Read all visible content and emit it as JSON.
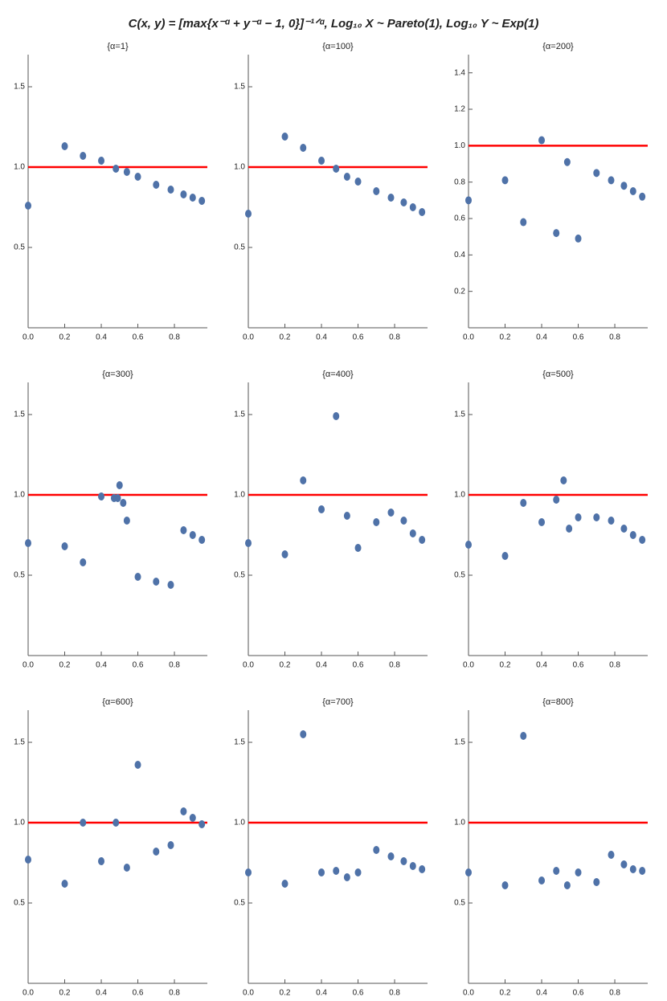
{
  "title": "C(x, y) = [max{x⁻ᵅ + y⁻ᵅ − 1, 0}]⁻¹ᐟᵅ, Log₁₀ X ~ Pareto(1), Log₁₀ Y ~ Exp(1)",
  "chart_data": [
    {
      "type": "scatter",
      "title": "{α=1}",
      "color": "#4f72a8",
      "x": [
        0,
        0.2,
        0.3,
        0.4,
        0.48,
        0.54,
        0.6,
        0.7,
        0.78,
        0.85,
        0.9,
        0.95
      ],
      "values": [
        0.76,
        1.13,
        1.07,
        1.04,
        0.99,
        0.97,
        0.94,
        0.89,
        0.86,
        0.83,
        0.81,
        0.79
      ],
      "xlim": [
        0,
        0.98
      ],
      "ylim": [
        0,
        1.7
      ],
      "xticks": [
        {
          "value": 0,
          "label": "0.0"
        },
        0.2,
        0.4,
        0.6,
        0.8
      ],
      "yticks": [
        0.5,
        {
          "value": 1,
          "label": "1.0"
        },
        1.5
      ],
      "reference_line": {
        "value": 1,
        "color": "#ff0000"
      }
    },
    {
      "type": "scatter",
      "title": "{α=100}",
      "color": "#4f72a8",
      "x": [
        0,
        0.2,
        0.3,
        0.4,
        0.48,
        0.54,
        0.6,
        0.7,
        0.78,
        0.85,
        0.9,
        0.95
      ],
      "values": [
        0.71,
        1.19,
        1.12,
        1.04,
        0.99,
        0.94,
        0.91,
        0.85,
        0.81,
        0.78,
        0.75,
        0.72
      ],
      "xlim": [
        0,
        0.98
      ],
      "ylim": [
        0,
        1.7
      ],
      "xticks": [
        {
          "value": 0,
          "label": "0.0"
        },
        0.2,
        0.4,
        0.6,
        0.8
      ],
      "yticks": [
        0.5,
        {
          "value": 1,
          "label": "1.0"
        },
        1.5
      ],
      "reference_line": {
        "value": 1,
        "color": "#ff0000"
      }
    },
    {
      "type": "scatter",
      "title": "{α=200}",
      "color": "#4f72a8",
      "x": [
        0,
        0.2,
        0.3,
        0.4,
        0.48,
        0.54,
        0.6,
        0.7,
        0.78,
        0.85,
        0.9,
        0.95
      ],
      "values": [
        0.7,
        0.81,
        0.58,
        1.03,
        0.52,
        0.91,
        0.49,
        0.85,
        0.81,
        0.78,
        0.75,
        0.72
      ],
      "xlim": [
        0,
        0.98
      ],
      "ylim": [
        0,
        1.5
      ],
      "xticks": [
        {
          "value": 0,
          "label": "0.0"
        },
        0.2,
        0.4,
        0.6,
        0.8
      ],
      "yticks": [
        0.2,
        0.4,
        0.6,
        0.8,
        {
          "value": 1,
          "label": "1.0"
        },
        1.2,
        1.4
      ],
      "reference_line": {
        "value": 1,
        "color": "#ff0000"
      }
    },
    {
      "type": "scatter",
      "title": "{α=300}",
      "color": "#4f72a8",
      "x": [
        0,
        0.2,
        0.3,
        0.4,
        0.47,
        0.49,
        0.5,
        0.52,
        0.54,
        0.6,
        0.7,
        0.78,
        0.85,
        0.9,
        0.95
      ],
      "values": [
        0.7,
        0.68,
        0.58,
        0.99,
        0.98,
        0.98,
        1.06,
        0.95,
        0.84,
        0.49,
        0.46,
        0.44,
        0.78,
        0.75,
        0.72
      ],
      "xlim": [
        0,
        0.98
      ],
      "ylim": [
        0,
        1.7
      ],
      "xticks": [
        {
          "value": 0,
          "label": "0.0"
        },
        0.2,
        0.4,
        0.6,
        0.8
      ],
      "yticks": [
        0.5,
        {
          "value": 1,
          "label": "1.0"
        },
        1.5
      ],
      "reference_line": {
        "value": 1,
        "color": "#ff0000"
      }
    },
    {
      "type": "scatter",
      "title": "{α=400}",
      "color": "#4f72a8",
      "x": [
        0,
        0.2,
        0.3,
        0.4,
        0.48,
        0.54,
        0.6,
        0.7,
        0.78,
        0.85,
        0.9,
        0.95
      ],
      "values": [
        0.7,
        0.63,
        1.09,
        0.91,
        1.49,
        0.87,
        0.67,
        0.83,
        0.89,
        0.84,
        0.76,
        0.72
      ],
      "xlim": [
        0,
        0.98
      ],
      "ylim": [
        0,
        1.7
      ],
      "xticks": [
        {
          "value": 0,
          "label": "0.0"
        },
        0.2,
        0.4,
        0.6,
        0.8
      ],
      "yticks": [
        0.5,
        {
          "value": 1,
          "label": "1.0"
        },
        1.5
      ],
      "reference_line": {
        "value": 1,
        "color": "#ff0000"
      }
    },
    {
      "type": "scatter",
      "title": "{α=500}",
      "color": "#4f72a8",
      "x": [
        0,
        0.2,
        0.3,
        0.4,
        0.48,
        0.52,
        0.55,
        0.6,
        0.7,
        0.78,
        0.85,
        0.9,
        0.95
      ],
      "values": [
        0.69,
        0.62,
        0.95,
        0.83,
        0.97,
        1.09,
        0.79,
        0.86,
        0.86,
        0.84,
        0.79,
        0.75,
        0.72
      ],
      "xlim": [
        0,
        0.98
      ],
      "ylim": [
        0,
        1.7
      ],
      "xticks": [
        {
          "value": 0,
          "label": "0.0"
        },
        0.2,
        0.4,
        0.6,
        0.8
      ],
      "yticks": [
        0.5,
        {
          "value": 1,
          "label": "1.0"
        },
        1.5
      ],
      "reference_line": {
        "value": 1,
        "color": "#ff0000"
      }
    },
    {
      "type": "scatter",
      "title": "{α=600}",
      "color": "#4f72a8",
      "x": [
        0,
        0.2,
        0.3,
        0.4,
        0.48,
        0.54,
        0.6,
        0.7,
        0.78,
        0.85,
        0.9,
        0.95
      ],
      "values": [
        0.77,
        0.62,
        1.0,
        0.76,
        1.0,
        0.72,
        1.36,
        0.82,
        0.86,
        1.07,
        1.03,
        0.99
      ],
      "xlim": [
        0,
        0.98
      ],
      "ylim": [
        0,
        1.7
      ],
      "xticks": [
        {
          "value": 0,
          "label": "0.0"
        },
        0.2,
        0.4,
        0.6,
        0.8
      ],
      "yticks": [
        0.5,
        {
          "value": 1,
          "label": "1.0"
        },
        1.5
      ],
      "reference_line": {
        "value": 1,
        "color": "#ff0000"
      }
    },
    {
      "type": "scatter",
      "title": "{α=700}",
      "color": "#4f72a8",
      "x": [
        0,
        0.2,
        0.3,
        0.4,
        0.48,
        0.54,
        0.6,
        0.7,
        0.78,
        0.85,
        0.9,
        0.95
      ],
      "values": [
        0.69,
        0.62,
        1.55,
        0.69,
        0.7,
        0.66,
        0.69,
        0.83,
        0.79,
        0.76,
        0.73,
        0.71
      ],
      "xlim": [
        0,
        0.98
      ],
      "ylim": [
        0,
        1.7
      ],
      "xticks": [
        {
          "value": 0,
          "label": "0.0"
        },
        0.2,
        0.4,
        0.6,
        0.8
      ],
      "yticks": [
        0.5,
        {
          "value": 1,
          "label": "1.0"
        },
        1.5
      ],
      "reference_line": {
        "value": 1,
        "color": "#ff0000"
      }
    },
    {
      "type": "scatter",
      "title": "{α=800}",
      "color": "#4f72a8",
      "x": [
        0,
        0.2,
        0.3,
        0.4,
        0.48,
        0.54,
        0.6,
        0.7,
        0.78,
        0.85,
        0.9,
        0.95
      ],
      "values": [
        0.69,
        0.61,
        1.54,
        0.64,
        0.7,
        0.61,
        0.69,
        0.63,
        0.8,
        0.74,
        0.71,
        0.7
      ],
      "xlim": [
        0,
        0.98
      ],
      "ylim": [
        0,
        1.7
      ],
      "xticks": [
        {
          "value": 0,
          "label": "0.0"
        },
        0.2,
        0.4,
        0.6,
        0.8
      ],
      "yticks": [
        0.5,
        {
          "value": 1,
          "label": "1.0"
        },
        1.5
      ],
      "reference_line": {
        "value": 1,
        "color": "#ff0000"
      }
    }
  ]
}
